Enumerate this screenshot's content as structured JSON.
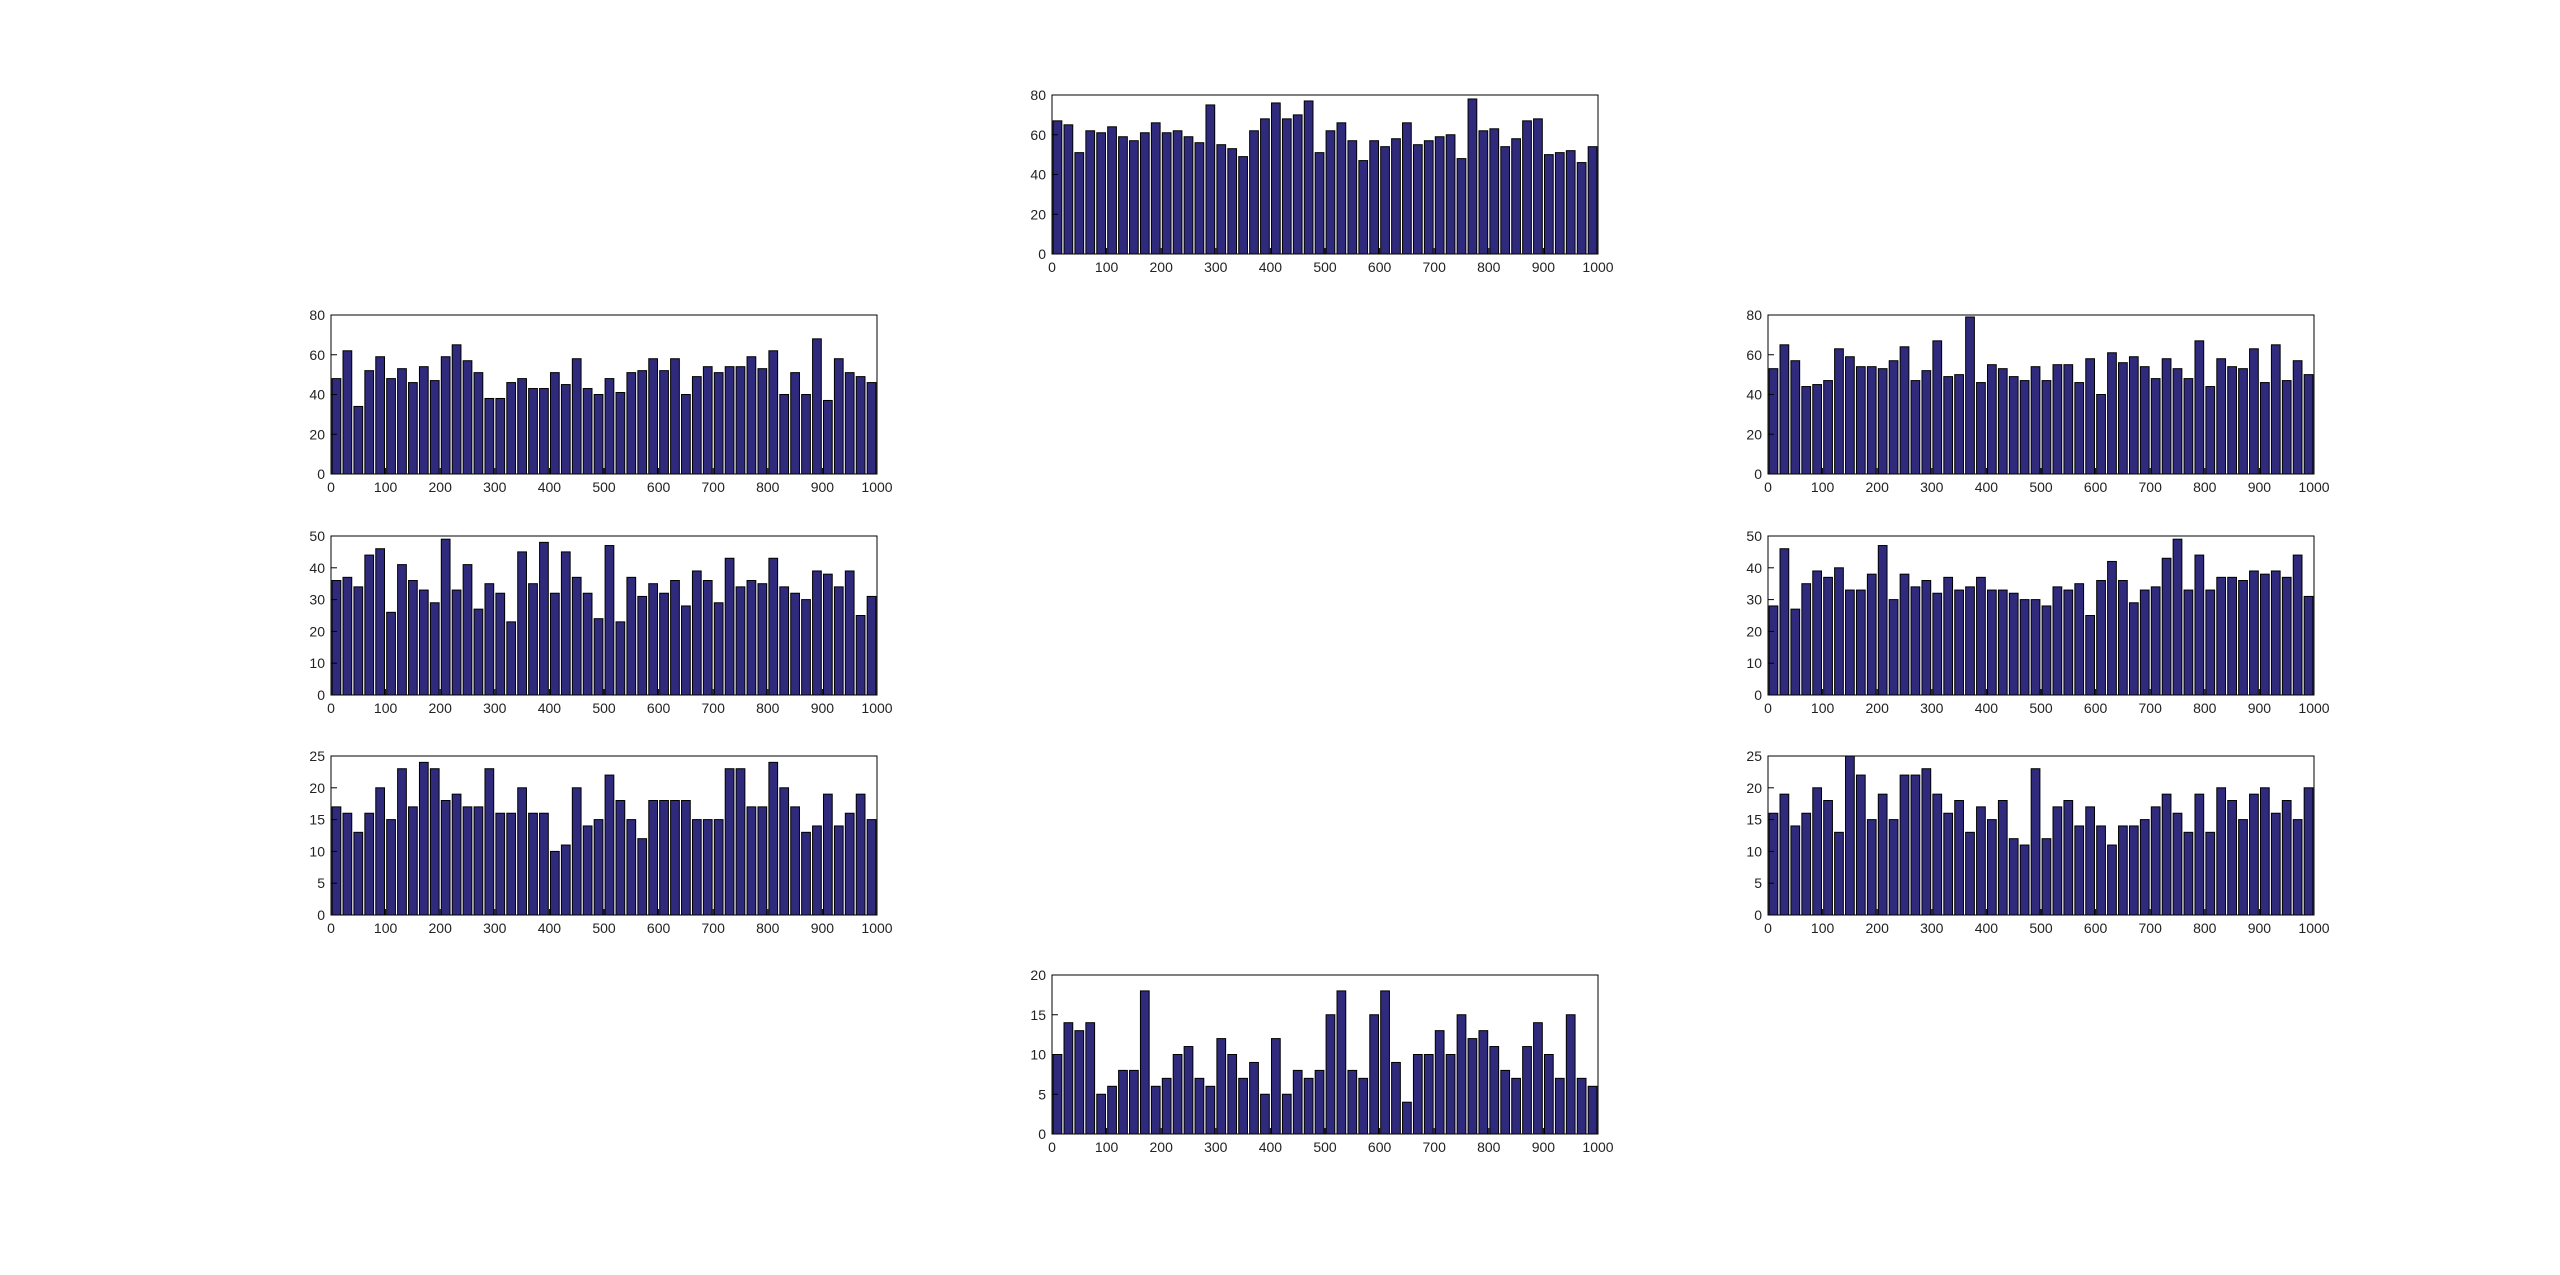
{
  "chart_data": [
    {
      "type": "histogram",
      "color": "#2f2a7c",
      "xlim": [
        0,
        1000
      ],
      "ylim": [
        0,
        80
      ],
      "xticks": [
        0,
        100,
        200,
        300,
        400,
        500,
        600,
        700,
        800,
        900,
        1000
      ],
      "yticks": [
        0,
        20,
        40,
        60,
        80
      ],
      "bins": [
        0,
        20,
        40,
        60,
        80,
        100,
        120,
        140,
        160,
        180,
        200,
        220,
        240,
        260,
        280,
        300,
        320,
        340,
        360,
        380,
        400,
        420,
        440,
        460,
        480,
        500,
        520,
        540,
        560,
        580,
        600,
        620,
        640,
        660,
        680,
        700,
        720,
        740,
        760,
        780,
        800,
        820,
        840,
        860,
        880,
        900,
        920,
        940,
        960,
        980,
        1000
      ],
      "values": [
        67,
        65,
        51,
        62,
        61,
        64,
        59,
        57,
        61,
        66,
        61,
        62,
        59,
        56,
        75,
        55,
        53,
        49,
        62,
        68,
        76,
        68,
        70,
        77,
        51,
        62,
        66,
        57,
        47,
        57,
        54,
        58,
        66,
        55,
        57,
        59,
        60,
        48,
        78,
        62,
        63,
        54,
        58,
        67,
        68,
        50,
        51,
        52,
        46,
        54
      ]
    },
    {
      "type": "histogram",
      "color": "#2f2a7c",
      "xlim": [
        0,
        1000
      ],
      "ylim": [
        0,
        80
      ],
      "xticks": [
        0,
        100,
        200,
        300,
        400,
        500,
        600,
        700,
        800,
        900,
        1000
      ],
      "yticks": [
        0,
        20,
        40,
        60,
        80
      ],
      "bins": [
        0,
        20,
        40,
        60,
        80,
        100,
        120,
        140,
        160,
        180,
        200,
        220,
        240,
        260,
        280,
        300,
        320,
        340,
        360,
        380,
        400,
        420,
        440,
        460,
        480,
        500,
        520,
        540,
        560,
        580,
        600,
        620,
        640,
        660,
        680,
        700,
        720,
        740,
        760,
        780,
        800,
        820,
        840,
        860,
        880,
        900,
        920,
        940,
        960,
        980,
        1000
      ],
      "values": [
        48,
        62,
        34,
        52,
        59,
        48,
        53,
        46,
        54,
        47,
        59,
        65,
        57,
        51,
        38,
        38,
        46,
        48,
        43,
        43,
        51,
        45,
        58,
        43,
        40,
        48,
        41,
        51,
        52,
        58,
        52,
        58,
        40,
        49,
        54,
        51,
        54,
        54,
        59,
        53,
        62,
        40,
        51,
        40,
        68,
        37,
        58,
        51,
        49,
        46
      ]
    },
    {
      "type": "histogram",
      "color": "#2f2a7c",
      "xlim": [
        0,
        1000
      ],
      "ylim": [
        0,
        80
      ],
      "xticks": [
        0,
        100,
        200,
        300,
        400,
        500,
        600,
        700,
        800,
        900,
        1000
      ],
      "yticks": [
        0,
        20,
        40,
        60,
        80
      ],
      "bins": [
        0,
        20,
        40,
        60,
        80,
        100,
        120,
        140,
        160,
        180,
        200,
        220,
        240,
        260,
        280,
        300,
        320,
        340,
        360,
        380,
        400,
        420,
        440,
        460,
        480,
        500,
        520,
        540,
        560,
        580,
        600,
        620,
        640,
        660,
        680,
        700,
        720,
        740,
        760,
        780,
        800,
        820,
        840,
        860,
        880,
        900,
        920,
        940,
        960,
        980,
        1000
      ],
      "values": [
        53,
        65,
        57,
        44,
        45,
        47,
        63,
        59,
        54,
        54,
        53,
        57,
        64,
        47,
        52,
        67,
        49,
        50,
        79,
        46,
        55,
        53,
        49,
        47,
        54,
        47,
        55,
        55,
        46,
        58,
        40,
        61,
        56,
        59,
        54,
        48,
        58,
        53,
        48,
        67,
        44,
        58,
        54,
        53,
        63,
        46,
        65,
        47,
        57,
        50
      ]
    },
    {
      "type": "histogram",
      "color": "#2f2a7c",
      "xlim": [
        0,
        1000
      ],
      "ylim": [
        0,
        50
      ],
      "xticks": [
        0,
        100,
        200,
        300,
        400,
        500,
        600,
        700,
        800,
        900,
        1000
      ],
      "yticks": [
        0,
        10,
        20,
        30,
        40,
        50
      ],
      "bins": [
        0,
        20,
        40,
        60,
        80,
        100,
        120,
        140,
        160,
        180,
        200,
        220,
        240,
        260,
        280,
        300,
        320,
        340,
        360,
        380,
        400,
        420,
        440,
        460,
        480,
        500,
        520,
        540,
        560,
        580,
        600,
        620,
        640,
        660,
        680,
        700,
        720,
        740,
        760,
        780,
        800,
        820,
        840,
        860,
        880,
        900,
        920,
        940,
        960,
        980,
        1000
      ],
      "values": [
        36,
        37,
        34,
        44,
        46,
        26,
        41,
        36,
        33,
        29,
        49,
        33,
        41,
        27,
        35,
        32,
        23,
        45,
        35,
        48,
        32,
        45,
        37,
        32,
        24,
        47,
        23,
        37,
        31,
        35,
        32,
        36,
        28,
        39,
        36,
        29,
        43,
        34,
        36,
        35,
        43,
        34,
        32,
        30,
        39,
        38,
        34,
        39,
        25,
        31
      ]
    },
    {
      "type": "histogram",
      "color": "#2f2a7c",
      "xlim": [
        0,
        1000
      ],
      "ylim": [
        0,
        50
      ],
      "xticks": [
        0,
        100,
        200,
        300,
        400,
        500,
        600,
        700,
        800,
        900,
        1000
      ],
      "yticks": [
        0,
        10,
        20,
        30,
        40,
        50
      ],
      "bins": [
        0,
        20,
        40,
        60,
        80,
        100,
        120,
        140,
        160,
        180,
        200,
        220,
        240,
        260,
        280,
        300,
        320,
        340,
        360,
        380,
        400,
        420,
        440,
        460,
        480,
        500,
        520,
        540,
        560,
        580,
        600,
        620,
        640,
        660,
        680,
        700,
        720,
        740,
        760,
        780,
        800,
        820,
        840,
        860,
        880,
        900,
        920,
        940,
        960,
        980,
        1000
      ],
      "values": [
        28,
        46,
        27,
        35,
        39,
        37,
        40,
        33,
        33,
        38,
        47,
        30,
        38,
        34,
        36,
        32,
        37,
        33,
        34,
        37,
        33,
        33,
        32,
        30,
        30,
        28,
        34,
        33,
        35,
        25,
        36,
        42,
        36,
        29,
        33,
        34,
        43,
        49,
        33,
        44,
        33,
        37,
        37,
        36,
        39,
        38,
        39,
        37,
        44,
        31
      ]
    },
    {
      "type": "histogram",
      "color": "#2f2a7c",
      "xlim": [
        0,
        1000
      ],
      "ylim": [
        0,
        25
      ],
      "xticks": [
        0,
        100,
        200,
        300,
        400,
        500,
        600,
        700,
        800,
        900,
        1000
      ],
      "yticks": [
        0,
        5,
        10,
        15,
        20,
        25
      ],
      "bins": [
        0,
        20,
        40,
        60,
        80,
        100,
        120,
        140,
        160,
        180,
        200,
        220,
        240,
        260,
        280,
        300,
        320,
        340,
        360,
        380,
        400,
        420,
        440,
        460,
        480,
        500,
        520,
        540,
        560,
        580,
        600,
        620,
        640,
        660,
        680,
        700,
        720,
        740,
        760,
        780,
        800,
        820,
        840,
        860,
        880,
        900,
        920,
        940,
        960,
        980,
        1000
      ],
      "values": [
        17,
        16,
        13,
        16,
        20,
        15,
        23,
        17,
        24,
        23,
        18,
        19,
        17,
        17,
        23,
        16,
        16,
        20,
        16,
        16,
        10,
        11,
        20,
        14,
        15,
        22,
        18,
        15,
        12,
        18,
        18,
        18,
        18,
        15,
        15,
        15,
        23,
        23,
        17,
        17,
        24,
        20,
        17,
        13,
        14,
        19,
        14,
        16,
        19,
        15
      ]
    },
    {
      "type": "histogram",
      "color": "#2f2a7c",
      "xlim": [
        0,
        1000
      ],
      "ylim": [
        0,
        25
      ],
      "xticks": [
        0,
        100,
        200,
        300,
        400,
        500,
        600,
        700,
        800,
        900,
        1000
      ],
      "yticks": [
        0,
        5,
        10,
        15,
        20,
        25
      ],
      "bins": [
        0,
        20,
        40,
        60,
        80,
        100,
        120,
        140,
        160,
        180,
        200,
        220,
        240,
        260,
        280,
        300,
        320,
        340,
        360,
        380,
        400,
        420,
        440,
        460,
        480,
        500,
        520,
        540,
        560,
        580,
        600,
        620,
        640,
        660,
        680,
        700,
        720,
        740,
        760,
        780,
        800,
        820,
        840,
        860,
        880,
        900,
        920,
        940,
        960,
        980,
        1000
      ],
      "values": [
        16,
        19,
        14,
        16,
        20,
        18,
        13,
        25,
        22,
        15,
        19,
        15,
        22,
        22,
        23,
        19,
        16,
        18,
        13,
        17,
        15,
        18,
        12,
        11,
        23,
        12,
        17,
        18,
        14,
        17,
        14,
        11,
        14,
        14,
        15,
        17,
        19,
        16,
        13,
        19,
        13,
        20,
        18,
        15,
        19,
        20,
        16,
        18,
        15,
        20
      ]
    },
    {
      "type": "histogram",
      "color": "#2f2a7c",
      "xlim": [
        0,
        1000
      ],
      "ylim": [
        0,
        20
      ],
      "xticks": [
        0,
        100,
        200,
        300,
        400,
        500,
        600,
        700,
        800,
        900,
        1000
      ],
      "yticks": [
        0,
        5,
        10,
        15,
        20
      ],
      "bins": [
        0,
        20,
        40,
        60,
        80,
        100,
        120,
        140,
        160,
        180,
        200,
        220,
        240,
        260,
        280,
        300,
        320,
        340,
        360,
        380,
        400,
        420,
        440,
        460,
        480,
        500,
        520,
        540,
        560,
        580,
        600,
        620,
        640,
        660,
        680,
        700,
        720,
        740,
        760,
        780,
        800,
        820,
        840,
        860,
        880,
        900,
        920,
        940,
        960,
        980,
        1000
      ],
      "values": [
        10,
        14,
        13,
        14,
        5,
        6,
        8,
        8,
        18,
        6,
        7,
        10,
        11,
        7,
        6,
        12,
        10,
        7,
        9,
        5,
        12,
        5,
        8,
        7,
        8,
        15,
        18,
        8,
        7,
        15,
        18,
        9,
        4,
        10,
        10,
        13,
        10,
        15,
        12,
        13,
        11,
        8,
        7,
        11,
        14,
        10,
        7,
        15,
        7,
        6
      ]
    }
  ]
}
